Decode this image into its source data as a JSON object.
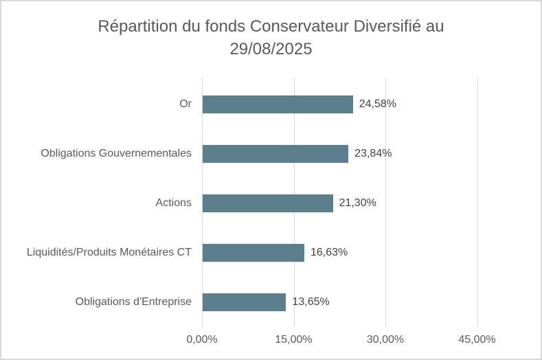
{
  "window": {
    "kind": "embedded spreadsheet chart"
  },
  "colors": {
    "bar_fill": "#5B7F8C",
    "title_text": "#595959",
    "axis_text": "#595959",
    "value_text": "#404040",
    "gridline": "#D9D9D9",
    "frame_border": "#D9D9D9",
    "background": "#FFFFFF"
  },
  "title": {
    "line1": "Répartition du fonds Conservateur Diversifié au",
    "line2": "29/08/2025"
  },
  "chart_data": {
    "type": "bar",
    "orientation": "horizontal",
    "title": "Répartition du fonds Conservateur Diversifié au 29/08/2025",
    "xlabel": "",
    "ylabel": "",
    "categories": [
      "Or",
      "Obligations Gouvernementales",
      "Actions",
      "Liquidités/Produits Monétaires CT",
      "Obligations d'Entreprise"
    ],
    "values": [
      24.58,
      23.84,
      21.3,
      16.63,
      13.65
    ],
    "value_labels": [
      "24,58%",
      "23,84%",
      "21,30%",
      "16,63%",
      "13,65%"
    ],
    "x_ticks": [
      {
        "value": 0,
        "label": "0,00%"
      },
      {
        "value": 15,
        "label": "15,00%"
      },
      {
        "value": 30,
        "label": "30,00%"
      },
      {
        "value": 45,
        "label": "45,00%"
      }
    ],
    "xlim": [
      0,
      53.5
    ],
    "grid": true,
    "legend": false,
    "data_labels": true
  }
}
